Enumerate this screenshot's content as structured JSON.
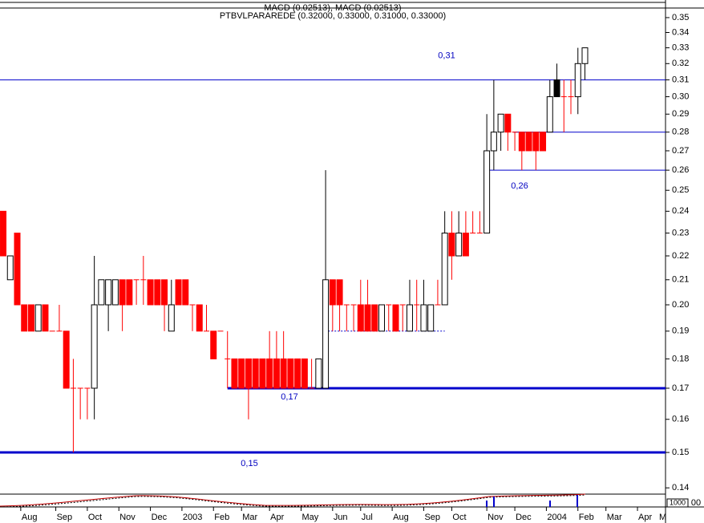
{
  "chart_data": {
    "type": "candlestick",
    "title": "MACD (0.02513), MACD (0.02513)",
    "subtitle": "PTBVLPARAREDE (0.32000, 0.33000, 0.31000, 0.33000)",
    "log_scale": true,
    "up_color": "#ffffff",
    "down_color": "#ff0000",
    "highlight": 79,
    "highlight_color": "#000000",
    "level_color": "#0000cc",
    "ylim": [
      0.1383,
      0.3566
    ],
    "yticks": [
      0.35,
      0.34,
      0.33,
      0.32,
      0.31,
      {
        "value": 0.3,
        "label": "0.30"
      },
      0.29,
      0.28,
      0.27,
      0.26,
      0.25,
      0.24,
      0.23,
      0.22,
      0.21,
      {
        "value": 0.2,
        "label": "0.20"
      },
      0.19,
      0.18,
      0.17,
      0.16,
      0.15,
      0.14
    ],
    "xlim": [
      -0.46,
      94.5
    ],
    "xticks": [
      {
        "value": 2.5,
        "label": "Aug"
      },
      {
        "value": 7.5,
        "label": "Sep"
      },
      {
        "value": 12,
        "label": "Oct"
      },
      {
        "value": 16.5,
        "label": "Nov"
      },
      {
        "value": 21,
        "label": "Dec"
      },
      {
        "value": 25.5,
        "label": "2003"
      },
      {
        "value": 30,
        "label": "Feb"
      },
      {
        "value": 34,
        "label": "Mar"
      },
      {
        "value": 38,
        "label": "Apr"
      },
      {
        "value": 42.5,
        "label": "May"
      },
      {
        "value": 47,
        "label": "Jun"
      },
      {
        "value": 51,
        "label": "Jul"
      },
      {
        "value": 55.5,
        "label": "Aug"
      },
      {
        "value": 60,
        "label": "Sep"
      },
      {
        "value": 64,
        "label": "Oct"
      },
      {
        "value": 69,
        "label": "Nov"
      },
      {
        "value": 73,
        "label": "Dec"
      },
      {
        "value": 77.5,
        "label": "2004"
      },
      {
        "value": 82,
        "label": "Feb"
      },
      {
        "value": 86,
        "label": "Mar"
      },
      {
        "value": 90.5,
        "label": "Apr"
      },
      {
        "value": 94.5,
        "label": "M"
      }
    ],
    "ohlc": [
      [
        0.24,
        0.24,
        0.22,
        0.22
      ],
      [
        0.21,
        0.22,
        0.21,
        0.22
      ],
      [
        0.23,
        0.23,
        0.2,
        0.2
      ],
      [
        0.2,
        0.2,
        0.19,
        0.19
      ],
      [
        0.2,
        0.2,
        0.19,
        0.19
      ],
      [
        0.19,
        0.2,
        0.19,
        0.2
      ],
      [
        0.2,
        0.2,
        0.19,
        0.19
      ],
      [
        0.19,
        0.19,
        0.19,
        0.19
      ],
      [
        0.19,
        0.2,
        0.19,
        0.19
      ],
      [
        0.19,
        0.19,
        0.17,
        0.17
      ],
      [
        0.17,
        0.18,
        0.15,
        0.17
      ],
      [
        0.17,
        0.17,
        0.16,
        0.17
      ],
      [
        0.17,
        0.17,
        0.16,
        0.17
      ],
      [
        0.17,
        0.22,
        0.16,
        0.2
      ],
      [
        0.2,
        0.21,
        0.2,
        0.21
      ],
      [
        0.2,
        0.21,
        0.19,
        0.21
      ],
      [
        0.2,
        0.21,
        0.2,
        0.21
      ],
      [
        0.21,
        0.21,
        0.19,
        0.2
      ],
      [
        0.21,
        0.21,
        0.2,
        0.2
      ],
      [
        0.21,
        0.21,
        0.2,
        0.21
      ],
      [
        0.21,
        0.22,
        0.2,
        0.21
      ],
      [
        0.21,
        0.21,
        0.2,
        0.2
      ],
      [
        0.21,
        0.21,
        0.2,
        0.2
      ],
      [
        0.21,
        0.21,
        0.19,
        0.2
      ],
      [
        0.19,
        0.21,
        0.19,
        0.2
      ],
      [
        0.21,
        0.21,
        0.2,
        0.2
      ],
      [
        0.21,
        0.21,
        0.2,
        0.2
      ],
      [
        0.2,
        0.2,
        0.19,
        0.2
      ],
      [
        0.2,
        0.2,
        0.19,
        0.19
      ],
      [
        0.19,
        0.2,
        0.19,
        0.19
      ],
      [
        0.19,
        0.19,
        0.18,
        0.18
      ],
      [
        0.19,
        0.19,
        0.19,
        0.19
      ],
      [
        0.18,
        0.19,
        0.17,
        0.18
      ],
      [
        0.18,
        0.18,
        0.17,
        0.17
      ],
      [
        0.18,
        0.18,
        0.17,
        0.17
      ],
      [
        0.18,
        0.18,
        0.16,
        0.17
      ],
      [
        0.18,
        0.18,
        0.17,
        0.17
      ],
      [
        0.18,
        0.18,
        0.17,
        0.17
      ],
      [
        0.18,
        0.19,
        0.17,
        0.17
      ],
      [
        0.18,
        0.19,
        0.17,
        0.17
      ],
      [
        0.18,
        0.19,
        0.17,
        0.17
      ],
      [
        0.18,
        0.18,
        0.17,
        0.17
      ],
      [
        0.18,
        0.18,
        0.17,
        0.17
      ],
      [
        0.18,
        0.18,
        0.17,
        0.17
      ],
      [
        0.17,
        0.18,
        0.17,
        0.17
      ],
      [
        0.17,
        0.18,
        0.17,
        0.18
      ],
      [
        0.17,
        0.26,
        0.17,
        0.21
      ],
      [
        0.21,
        0.21,
        0.19,
        0.2
      ],
      [
        0.21,
        0.21,
        0.19,
        0.2
      ],
      [
        0.2,
        0.2,
        0.19,
        0.2
      ],
      [
        0.2,
        0.2,
        0.19,
        0.2
      ],
      [
        0.2,
        0.21,
        0.19,
        0.19
      ],
      [
        0.2,
        0.21,
        0.19,
        0.19
      ],
      [
        0.2,
        0.2,
        0.19,
        0.19
      ],
      [
        0.19,
        0.2,
        0.19,
        0.2
      ],
      [
        0.2,
        0.2,
        0.19,
        0.2
      ],
      [
        0.2,
        0.2,
        0.19,
        0.19
      ],
      [
        0.2,
        0.2,
        0.19,
        0.2
      ],
      [
        0.19,
        0.21,
        0.19,
        0.2
      ],
      [
        0.2,
        0.21,
        0.19,
        0.2
      ],
      [
        0.19,
        0.21,
        0.19,
        0.2
      ],
      [
        0.19,
        0.2,
        0.19,
        0.2
      ],
      [
        0.2,
        0.21,
        0.2,
        0.2
      ],
      [
        0.2,
        0.24,
        0.2,
        0.23
      ],
      [
        0.23,
        0.24,
        0.21,
        0.22
      ],
      [
        0.22,
        0.24,
        0.22,
        0.23
      ],
      [
        0.23,
        0.24,
        0.22,
        0.22
      ],
      [
        0.23,
        0.24,
        0.23,
        0.23
      ],
      [
        0.23,
        0.24,
        0.23,
        0.23
      ],
      [
        0.23,
        0.29,
        0.23,
        0.27
      ],
      [
        0.27,
        0.31,
        0.26,
        0.28
      ],
      [
        0.28,
        0.29,
        0.27,
        0.29
      ],
      [
        0.29,
        0.29,
        0.27,
        0.28
      ],
      [
        0.28,
        0.28,
        0.27,
        0.28
      ],
      [
        0.28,
        0.28,
        0.26,
        0.27
      ],
      [
        0.28,
        0.28,
        0.27,
        0.27
      ],
      [
        0.28,
        0.28,
        0.26,
        0.27
      ],
      [
        0.28,
        0.28,
        0.27,
        0.27
      ],
      [
        0.28,
        0.31,
        0.28,
        0.3
      ],
      [
        0.31,
        0.32,
        0.3,
        0.3
      ],
      [
        0.3,
        0.31,
        0.28,
        0.3
      ],
      [
        0.3,
        0.31,
        0.29,
        0.3
      ],
      [
        0.3,
        0.33,
        0.29,
        0.32
      ],
      [
        0.32,
        0.33,
        0.31,
        0.33
      ]
    ],
    "levels": [
      {
        "value": 0.31,
        "label": "0,31",
        "x_start": -0.46,
        "style": "thin"
      },
      {
        "value": 0.28,
        "x_start": 72.8,
        "style": "thin"
      },
      {
        "value": 0.26,
        "label": "0,26",
        "x_start": 69.3,
        "style": "thin"
      },
      {
        "value": 0.19,
        "x_start": 45.9,
        "x_end": 63,
        "style": "dotted"
      },
      {
        "value": 0.17,
        "label": "0,17",
        "x_start": 32,
        "style": "thick"
      },
      {
        "value": 0.15,
        "label": "0,15",
        "x_start": -0.46,
        "style": "thick"
      }
    ],
    "indicator_labels": [
      "1000",
      "00"
    ]
  }
}
